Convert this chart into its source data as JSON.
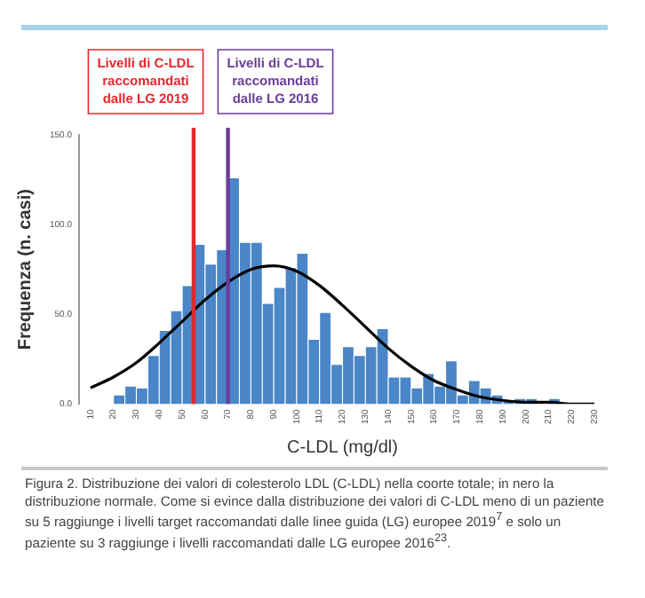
{
  "chart_data": {
    "type": "histogram",
    "xlabel": "C-LDL (mg/dl)",
    "ylabel": "Frequenza (n. casi)",
    "xlim": [
      10,
      230
    ],
    "xticks": [
      10,
      20,
      30,
      40,
      50,
      60,
      70,
      80,
      90,
      100,
      110,
      120,
      130,
      140,
      150,
      160,
      170,
      180,
      190,
      200,
      210,
      220,
      230
    ],
    "ylim": [
      0,
      150
    ],
    "yticks": [
      {
        "value": 0,
        "label": "0.0"
      },
      {
        "value": 50,
        "label": "50.0"
      },
      {
        "value": 100,
        "label": "100.0"
      },
      {
        "value": 150,
        "label": "150.0"
      }
    ],
    "grid": false,
    "legend": false,
    "series": [
      {
        "color": "#4a86c8",
        "bins": [
          20,
          25,
          30,
          35,
          40,
          45,
          50,
          55,
          60,
          65,
          70,
          75,
          80,
          85,
          90,
          95,
          100,
          105,
          110,
          115,
          120,
          125,
          130,
          135,
          140,
          145,
          150,
          155,
          160,
          165,
          170,
          175,
          180,
          185,
          190,
          195,
          200,
          205,
          210,
          215,
          220
        ],
        "values": [
          5,
          10,
          9,
          27,
          41,
          52,
          66,
          89,
          78,
          86,
          126,
          90,
          90,
          56,
          65,
          76,
          84,
          36,
          51,
          22,
          32,
          27,
          32,
          42,
          15,
          15,
          9,
          17,
          10,
          24,
          5,
          13,
          9,
          5,
          2,
          3,
          3,
          0,
          3,
          0
        ]
      },
      {
        "type": "line",
        "color": "#000000",
        "x": [
          10,
          20,
          30,
          40,
          50,
          60,
          70,
          80,
          90,
          100,
          110,
          120,
          130,
          140,
          150,
          160,
          170,
          180,
          190,
          200,
          210,
          220,
          230
        ],
        "values": [
          9,
          15,
          23,
          34,
          46,
          58,
          68,
          75,
          77,
          74,
          66,
          55,
          43,
          31,
          21,
          13,
          8,
          4,
          2,
          1,
          1,
          0,
          0
        ]
      }
    ],
    "ref_lines": [
      {
        "axis": "x",
        "value": 55,
        "label": "Livelli di C-LDL\nraccomandati\ndalle LG 2019",
        "color": "#e8262c"
      },
      {
        "axis": "x",
        "value": 70,
        "label": "Livelli di C-LDL\nraccomandati\ndalle LG 2016",
        "color": "#6a3d9a"
      }
    ],
    "annotations": [
      "Figura 2. Distribuzione dei valori di colesterolo LDL (C-LDL) nella coorte totale; in nero la distribuzione normale. Come si evince dalla distribuzione dei valori di C-LDL meno di un paziente su 5 raggiunge i livelli target raccomandati dalle linee guida (LG) europee 2019$^{7}$ e solo un paziente su 3 raggiunge i livelli raccomandati dalle LG europee 2016$^{23}$."
    ]
  }
}
